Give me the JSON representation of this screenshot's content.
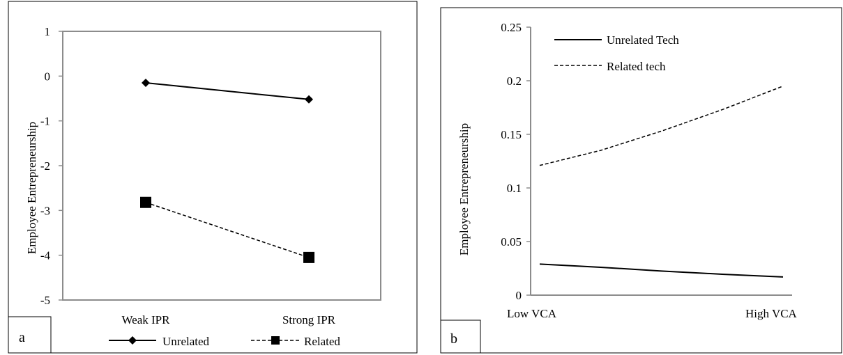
{
  "chart_data": [
    {
      "panel_label": "a",
      "type": "line",
      "title": "",
      "xlabel": "",
      "ylabel": "Employee Entrepreneurship",
      "categories": [
        "Weak IPR",
        "Strong IPR"
      ],
      "ylim": [
        -5,
        1
      ],
      "yticks": [
        1,
        0,
        -1,
        -2,
        -3,
        -4,
        -5
      ],
      "ytick_labels": [
        "1",
        "0",
        "-1",
        "-2",
        "-3",
        "-4",
        "-5"
      ],
      "grid": false,
      "legend_position": "bottom",
      "series": [
        {
          "name": "Unrelated",
          "values": [
            -0.15,
            -0.52
          ],
          "line": "solid",
          "marker": "diamond",
          "color": "#000000"
        },
        {
          "name": "Related",
          "values": [
            -2.82,
            -4.05
          ],
          "line": "dashed",
          "marker": "square",
          "color": "#000000"
        }
      ]
    },
    {
      "panel_label": "b",
      "type": "line",
      "title": "",
      "xlabel": "",
      "ylabel": "Employee Entrepreneurship",
      "x_endpoint_labels": [
        "Low VCA",
        "High VCA"
      ],
      "ylim": [
        0,
        0.25
      ],
      "yticks": [
        0.25,
        0.2,
        0.15,
        0.1,
        0.05,
        0
      ],
      "ytick_labels": [
        "0.25",
        "0.2",
        "0.15",
        "0.1",
        "0.05",
        "0"
      ],
      "grid": false,
      "legend_position": "top-left",
      "series": [
        {
          "name": "Unrelated Tech",
          "line": "solid",
          "color": "#000000",
          "x": [
            0,
            0.25,
            0.5,
            0.75,
            1
          ],
          "values": [
            0.029,
            0.026,
            0.0225,
            0.0195,
            0.017
          ]
        },
        {
          "name": "Related tech",
          "line": "dashed",
          "color": "#000000",
          "x": [
            0,
            0.25,
            0.5,
            0.75,
            1
          ],
          "values": [
            0.121,
            0.135,
            0.153,
            0.173,
            0.195
          ]
        }
      ]
    }
  ]
}
